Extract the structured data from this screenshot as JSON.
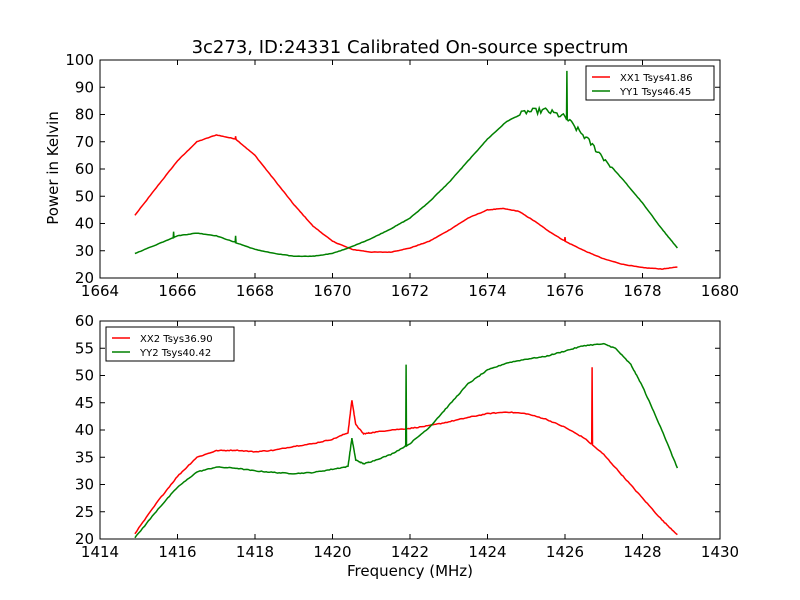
{
  "figure_title": "3c273, ID:24331 Calibrated On-source spectrum",
  "chart_data": [
    {
      "type": "line",
      "title": "3c273, ID:24331 Calibrated On-source spectrum",
      "xlabel": "",
      "ylabel": "Power in Kelvin",
      "xlim": [
        1664,
        1680
      ],
      "ylim": [
        20,
        100
      ],
      "xticks": [
        1664,
        1666,
        1668,
        1670,
        1672,
        1674,
        1676,
        1678,
        1680
      ],
      "yticks": [
        20,
        30,
        40,
        50,
        60,
        70,
        80,
        90,
        100
      ],
      "grid": false,
      "legend_position": "top-right",
      "series": [
        {
          "name": "XX1 Tsys41.86",
          "color": "#ff0000",
          "x": [
            1664.9,
            1665.5,
            1666.0,
            1666.5,
            1667.0,
            1667.5,
            1668.0,
            1668.5,
            1669.0,
            1669.5,
            1670.0,
            1670.5,
            1671.0,
            1671.5,
            1672.0,
            1672.5,
            1673.0,
            1673.5,
            1674.0,
            1674.4,
            1674.8,
            1675.2,
            1675.6,
            1676.0,
            1676.5,
            1677.0,
            1677.5,
            1678.0,
            1678.5,
            1678.9
          ],
          "y": [
            43,
            54,
            63,
            70,
            72.5,
            71,
            65,
            56,
            47,
            39,
            33.5,
            30.5,
            29.5,
            29.5,
            31,
            33.5,
            37.5,
            42,
            45,
            45.5,
            44.5,
            41,
            37,
            33.5,
            30,
            27,
            25,
            23.8,
            23.3,
            24
          ],
          "spikes": [
            {
              "x": 1667.5,
              "y": 72
            },
            {
              "x": 1676.0,
              "y": 35
            }
          ]
        },
        {
          "name": "YY1 Tsys46.45",
          "color": "#008000",
          "x": [
            1664.9,
            1665.5,
            1666.0,
            1666.5,
            1667.0,
            1667.5,
            1668.0,
            1668.5,
            1669.0,
            1669.5,
            1670.0,
            1670.5,
            1671.0,
            1671.5,
            1672.0,
            1672.5,
            1673.0,
            1673.5,
            1674.0,
            1674.5,
            1675.0,
            1675.5,
            1676.0,
            1676.5,
            1677.0,
            1677.5,
            1678.0,
            1678.5,
            1678.9
          ],
          "y": [
            29,
            32.5,
            35.5,
            36.5,
            35.5,
            33,
            30.5,
            29,
            28,
            28,
            29,
            31.5,
            34.5,
            38,
            42,
            48,
            55,
            63,
            71,
            77.5,
            81,
            81.5,
            79,
            72,
            64,
            56,
            47.5,
            38,
            31
          ],
          "spikes": [
            {
              "x": 1665.9,
              "y": 37
            },
            {
              "x": 1667.5,
              "y": 35.5
            },
            {
              "x": 1676.05,
              "y": 96
            }
          ],
          "noisy_region": [
            1674.8,
            1677.2
          ]
        }
      ]
    },
    {
      "type": "line",
      "title": "",
      "xlabel": "Frequency (MHz)",
      "ylabel": "",
      "xlim": [
        1414,
        1430
      ],
      "ylim": [
        20,
        60
      ],
      "xticks": [
        1414,
        1416,
        1418,
        1420,
        1422,
        1424,
        1426,
        1428,
        1430
      ],
      "yticks": [
        20,
        25,
        30,
        35,
        40,
        45,
        50,
        55,
        60
      ],
      "grid": false,
      "legend_position": "top-left",
      "series": [
        {
          "name": "XX2 Tsys36.90",
          "color": "#ff0000",
          "x": [
            1414.9,
            1415.5,
            1416.0,
            1416.5,
            1417.0,
            1417.5,
            1418.0,
            1418.5,
            1419.0,
            1419.5,
            1420.0,
            1420.4,
            1420.5,
            1420.6,
            1420.8,
            1421.0,
            1421.5,
            1422.0,
            1422.5,
            1423.0,
            1423.5,
            1424.0,
            1424.5,
            1425.0,
            1425.5,
            1426.0,
            1426.5,
            1427.0,
            1427.5,
            1428.0,
            1428.5,
            1428.9
          ],
          "y": [
            21,
            27,
            31.5,
            35,
            36.2,
            36.3,
            36,
            36.3,
            37,
            37.5,
            38.3,
            39.5,
            45.5,
            41,
            39.3,
            39.5,
            40,
            40.3,
            40.8,
            41.5,
            42.3,
            43,
            43.3,
            43,
            42,
            40.5,
            38.5,
            35.5,
            31.5,
            27.5,
            23.5,
            20.8
          ],
          "spikes": [
            {
              "x": 1426.7,
              "y": 51.5
            }
          ]
        },
        {
          "name": "YY2 Tsys40.42",
          "color": "#008000",
          "x": [
            1414.9,
            1415.5,
            1416.0,
            1416.5,
            1417.0,
            1417.5,
            1418.0,
            1418.5,
            1419.0,
            1419.5,
            1420.0,
            1420.4,
            1420.5,
            1420.6,
            1420.8,
            1421.0,
            1421.5,
            1422.0,
            1422.5,
            1423.0,
            1423.5,
            1424.0,
            1424.5,
            1425.0,
            1425.5,
            1426.0,
            1426.5,
            1427.0,
            1427.3,
            1427.7,
            1428.0,
            1428.5,
            1428.9
          ],
          "y": [
            20.2,
            25.5,
            29.5,
            32.3,
            33.2,
            33,
            32.5,
            32.2,
            32,
            32.2,
            32.8,
            33.3,
            38.5,
            34.5,
            33.8,
            34.2,
            35.5,
            37.5,
            40.5,
            44.5,
            48.5,
            51,
            52.3,
            53,
            53.5,
            54.5,
            55.5,
            55.8,
            55,
            52,
            48,
            40,
            33
          ],
          "spikes": [
            {
              "x": 1421.9,
              "y": 52
            }
          ]
        }
      ]
    }
  ]
}
